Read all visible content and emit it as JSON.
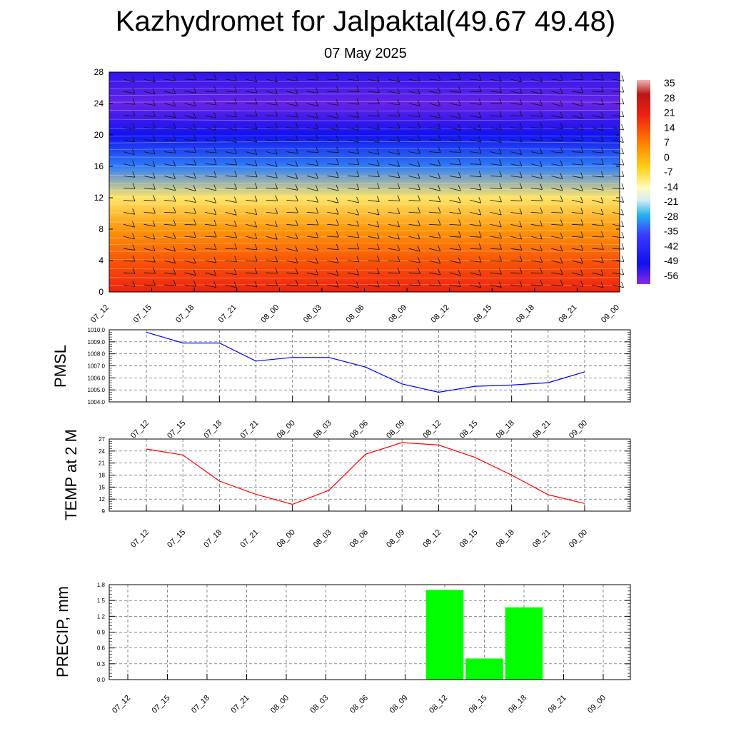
{
  "title": "Kazhydromet for Jalpaktal(49.67 49.48)",
  "subtitle": "07 May 2025",
  "chart_data": [
    {
      "type": "heatmap",
      "x_ticks": [
        "07_12",
        "07_15",
        "07_18",
        "07_21",
        "08_00",
        "08_03",
        "08_06",
        "08_09",
        "08_12",
        "08_15",
        "08_18",
        "08_21",
        "09_00"
      ],
      "y_ticks": [
        0,
        4,
        8,
        12,
        16,
        20,
        24,
        28
      ],
      "ylim": [
        0,
        28
      ],
      "colorbar_labels": [
        "35",
        "28",
        "21",
        "14",
        "7",
        "0",
        "-7",
        "-14",
        "-21",
        "-28",
        "-35",
        "-42",
        "-49",
        "-56"
      ],
      "colorbar_range": [
        -63,
        42
      ],
      "levels": [
        0,
        4,
        8,
        12,
        16,
        20,
        24,
        28
      ],
      "level_values": [
        24,
        16,
        6,
        -8,
        -32,
        -52,
        -60,
        -55
      ],
      "wind_barbs": true
    },
    {
      "type": "line",
      "ylabel": "PMSL",
      "categories": [
        "07_12",
        "07_15",
        "07_18",
        "07_21",
        "08_00",
        "08_03",
        "08_06",
        "08_09",
        "08_12",
        "08_15",
        "08_18",
        "08_21",
        "09_00"
      ],
      "values": [
        1009.8,
        1008.9,
        1008.9,
        1007.4,
        1007.7,
        1007.7,
        1006.9,
        1005.5,
        1004.8,
        1005.3,
        1005.4,
        1005.6,
        1006.5
      ],
      "y_ticks": [
        "1004.0",
        "1005.0",
        "1006.0",
        "1007.0",
        "1008.0",
        "1009.0",
        "1010.0"
      ],
      "ylim": [
        1004,
        1010
      ],
      "color": "#0000ff",
      "grid": true
    },
    {
      "type": "line",
      "ylabel": "TEMP at 2 M",
      "categories": [
        "07_12",
        "07_15",
        "07_18",
        "07_21",
        "08_00",
        "08_03",
        "08_06",
        "08_09",
        "08_12",
        "08_15",
        "08_18",
        "08_21",
        "09_00"
      ],
      "values": [
        24.5,
        23.0,
        16.5,
        13.2,
        10.7,
        14.2,
        23.2,
        26.1,
        25.5,
        22.4,
        18.0,
        13.1,
        10.9
      ],
      "y_ticks": [
        "9",
        "12",
        "15",
        "18",
        "21",
        "24",
        "27"
      ],
      "ylim": [
        9,
        27
      ],
      "color": "#ff0000",
      "grid": true
    },
    {
      "type": "bar",
      "ylabel": "PRECIP, mm",
      "categories": [
        "07_12",
        "07_15",
        "07_18",
        "07_21",
        "08_00",
        "08_03",
        "08_06",
        "08_09",
        "08_12",
        "08_15",
        "08_18",
        "08_21",
        "09_00"
      ],
      "values": [
        0,
        0,
        0,
        0,
        0,
        0,
        0,
        0,
        1.7,
        0.4,
        1.37,
        0,
        0
      ],
      "y_ticks": [
        "0.0",
        "0.3",
        "0.6",
        "0.9",
        "1.2",
        "1.5",
        "1.8"
      ],
      "ylim": [
        0,
        1.8
      ],
      "color": "#00ff00",
      "grid": true
    }
  ]
}
